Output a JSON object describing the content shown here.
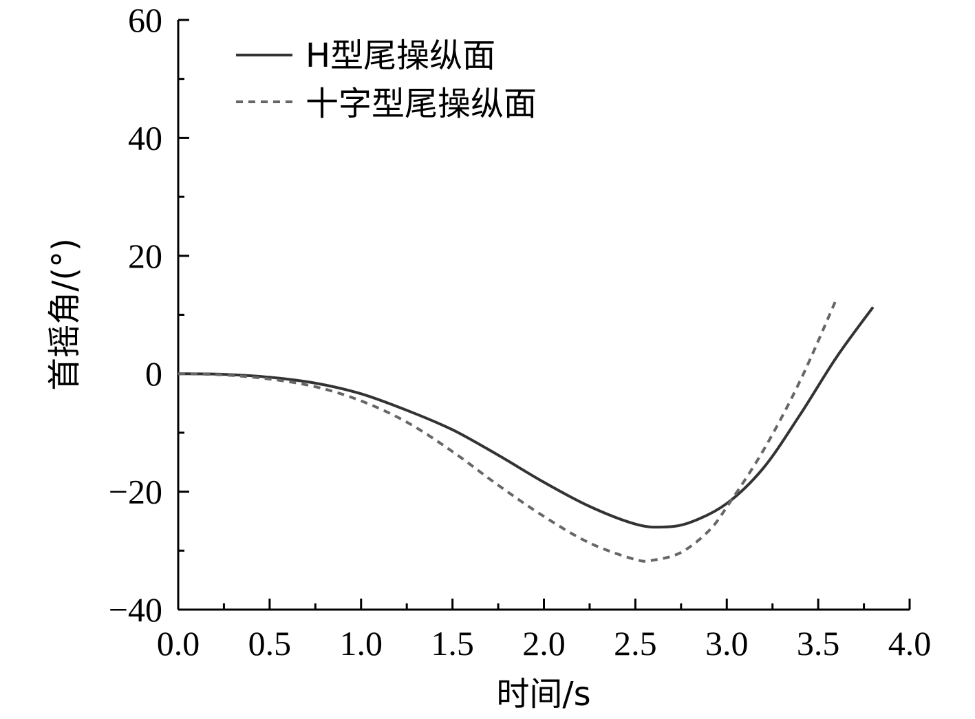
{
  "chart_data": {
    "type": "line",
    "xlabel": "时间/s",
    "ylabel": "首摇角/(°)",
    "xlim": [
      0,
      4
    ],
    "ylim": [
      -40,
      60
    ],
    "x_ticks": [
      0,
      0.5,
      1,
      1.5,
      2,
      2.5,
      3,
      3.5,
      4
    ],
    "x_tick_labels": [
      "0.0",
      "0.5",
      "1.0",
      "1.5",
      "2.0",
      "2.5",
      "3.0",
      "3.5",
      "4.0"
    ],
    "y_ticks": [
      -40,
      -20,
      0,
      20,
      40,
      60
    ],
    "y_tick_labels": [
      "−40",
      "−20",
      "0",
      "20",
      "40",
      "60"
    ],
    "grid": false,
    "legend_position": "top-left",
    "series": [
      {
        "name": "H型尾操纵面",
        "style": "solid",
        "color": "#333333",
        "points": [
          [
            0,
            0
          ],
          [
            0.25,
            -0.1
          ],
          [
            0.5,
            -0.6
          ],
          [
            0.75,
            -1.6
          ],
          [
            1.0,
            -3.4
          ],
          [
            1.25,
            -6.2
          ],
          [
            1.5,
            -9.5
          ],
          [
            1.75,
            -13.8
          ],
          [
            2.0,
            -18.4
          ],
          [
            2.25,
            -22.5
          ],
          [
            2.5,
            -25.5
          ],
          [
            2.65,
            -26.0
          ],
          [
            2.8,
            -25.2
          ],
          [
            3.0,
            -22.0
          ],
          [
            3.2,
            -16.0
          ],
          [
            3.4,
            -7.0
          ],
          [
            3.6,
            2.8
          ],
          [
            3.8,
            11.3
          ]
        ]
      },
      {
        "name": "十字型尾操纵面",
        "style": "dashed",
        "color": "#666666",
        "points": [
          [
            0,
            0
          ],
          [
            0.25,
            -0.2
          ],
          [
            0.5,
            -0.9
          ],
          [
            0.75,
            -2.2
          ],
          [
            1.0,
            -4.6
          ],
          [
            1.25,
            -8.2
          ],
          [
            1.5,
            -13.2
          ],
          [
            1.75,
            -18.9
          ],
          [
            2.0,
            -24.2
          ],
          [
            2.25,
            -28.7
          ],
          [
            2.5,
            -31.5
          ],
          [
            2.6,
            -31.6
          ],
          [
            2.75,
            -30.3
          ],
          [
            2.9,
            -26.7
          ],
          [
            3.0,
            -22.6
          ],
          [
            3.2,
            -13.0
          ],
          [
            3.4,
            -1.3
          ],
          [
            3.6,
            12.7
          ]
        ]
      }
    ]
  }
}
